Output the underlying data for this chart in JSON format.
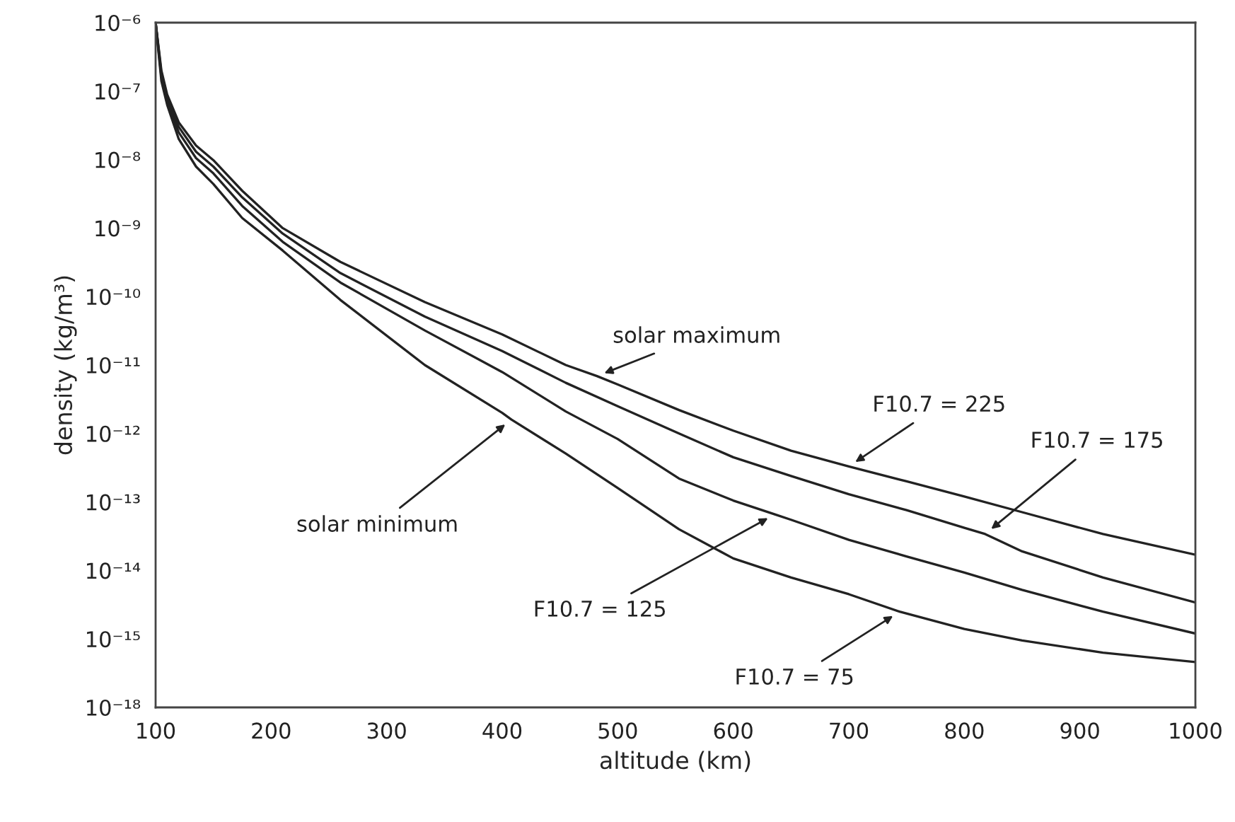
{
  "chart_data": {
    "type": "line",
    "xlabel": "altitude (km)",
    "ylabel": "density (kg/m³)",
    "log": "y",
    "series": [
      {
        "color": "#222222",
        "x": [
          100,
          105,
          110,
          120,
          135,
          150,
          175,
          210,
          260,
          333,
          400,
          455,
          482,
          500,
          553,
          600,
          650,
          700,
          750,
          800,
          850,
          920,
          1000
        ],
        "values": [
          1e-06,
          2e-07,
          8.9e-08,
          3.5e-08,
          1.6e-08,
          9.8e-09,
          3.5e-09,
          1e-09,
          3.2e-10,
          8.3e-11,
          2.8e-11,
          1e-11,
          6.9e-12,
          5.2e-12,
          2.2e-12,
          1.1e-12,
          5.6e-13,
          3.3e-13,
          2e-13,
          1.2e-13,
          7.1e-14,
          3.4e-14,
          1.7e-14
        ]
      },
      {
        "color": "#222222",
        "x": [
          100,
          105,
          110,
          120,
          135,
          150,
          175,
          210,
          260,
          333,
          400,
          455,
          500,
          553,
          600,
          650,
          700,
          750,
          800,
          818,
          850,
          920,
          1000
        ],
        "values": [
          1e-06,
          1.8e-07,
          7.9e-08,
          3e-08,
          1.3e-08,
          7.9e-09,
          2.8e-09,
          8.3e-10,
          2.2e-10,
          5.1e-11,
          1.6e-11,
          5.5e-12,
          2.5e-12,
          1e-12,
          4.5e-13,
          2.4e-13,
          1.3e-13,
          7.6e-14,
          4.2e-14,
          3.4e-14,
          1.9e-14,
          7.9e-15,
          3.4e-15
        ]
      },
      {
        "color": "#222222",
        "x": [
          100,
          105,
          110,
          120,
          135,
          150,
          175,
          210,
          260,
          333,
          400,
          455,
          500,
          553,
          600,
          636,
          650,
          700,
          750,
          800,
          850,
          920,
          1000
        ],
        "values": [
          1e-06,
          1.6e-07,
          7.1e-08,
          2.5e-08,
          1.05e-08,
          6.3e-09,
          2.1e-09,
          6.3e-10,
          1.6e-10,
          3.2e-11,
          7.9e-12,
          2.1e-12,
          8.3e-13,
          2.2e-13,
          1.05e-13,
          6.6e-14,
          5.5e-14,
          2.8e-14,
          1.6e-14,
          9.3e-15,
          5.2e-15,
          2.5e-15,
          1.2e-15
        ]
      },
      {
        "color": "#222222",
        "x": [
          100,
          105,
          110,
          120,
          135,
          150,
          175,
          210,
          260,
          333,
          400,
          408,
          455,
          500,
          553,
          600,
          650,
          700,
          744,
          800,
          850,
          920,
          1000
        ],
        "values": [
          1e-06,
          1.4e-07,
          6.3e-08,
          2e-08,
          7.9e-09,
          4.4e-09,
          1.4e-09,
          4.7e-10,
          8.9e-11,
          1e-11,
          2e-12,
          1.6e-12,
          5.1e-13,
          1.6e-13,
          4e-14,
          1.5e-14,
          7.9e-15,
          4.5e-15,
          2.5e-15,
          1.4e-15,
          9.5e-16,
          6.3e-16,
          4.6e-16
        ]
      }
    ],
    "xlim": [
      100,
      1000
    ],
    "xticks": [
      100,
      200,
      300,
      400,
      500,
      600,
      700,
      800,
      900,
      1000
    ],
    "ylim": [
      1e-16,
      1e-06
    ],
    "yticks": [
      {
        "value": 1e-06,
        "label": "10⁻⁶"
      },
      {
        "value": 1e-07,
        "label": "10⁻⁷"
      },
      {
        "value": 1e-08,
        "label": "10⁻⁸"
      },
      {
        "value": 1e-09,
        "label": "10⁻⁹"
      },
      {
        "value": 1e-10,
        "label": "10⁻¹⁰"
      },
      {
        "value": 1e-11,
        "label": "10⁻¹¹"
      },
      {
        "value": 1e-12,
        "label": "10⁻¹²"
      },
      {
        "value": 1e-13,
        "label": "10⁻¹³"
      },
      {
        "value": 1e-14,
        "label": "10⁻¹⁴"
      },
      {
        "value": 1e-15,
        "label": "10⁻¹⁵"
      },
      {
        "value": 1e-16,
        "label": "10⁻¹⁸"
      }
    ],
    "grid": false,
    "legend": false,
    "marker": "none",
    "line_style": "solid",
    "annotations": [
      {
        "text": "solar maximum",
        "x": 482,
        "y": 6.9e-12
      },
      {
        "text": "solar minimum",
        "x": 408,
        "y": 1.6e-12
      },
      {
        "text": "F10.7 = 225",
        "x": 700,
        "y": 3.3e-13
      },
      {
        "text": "F10.7 = 175",
        "x": 818,
        "y": 3.4e-14
      },
      {
        "text": "F10.7 = 125",
        "x": 636,
        "y": 6.6e-14
      },
      {
        "text": "F10.7 = 75",
        "x": 744,
        "y": 2.5e-15
      }
    ]
  }
}
